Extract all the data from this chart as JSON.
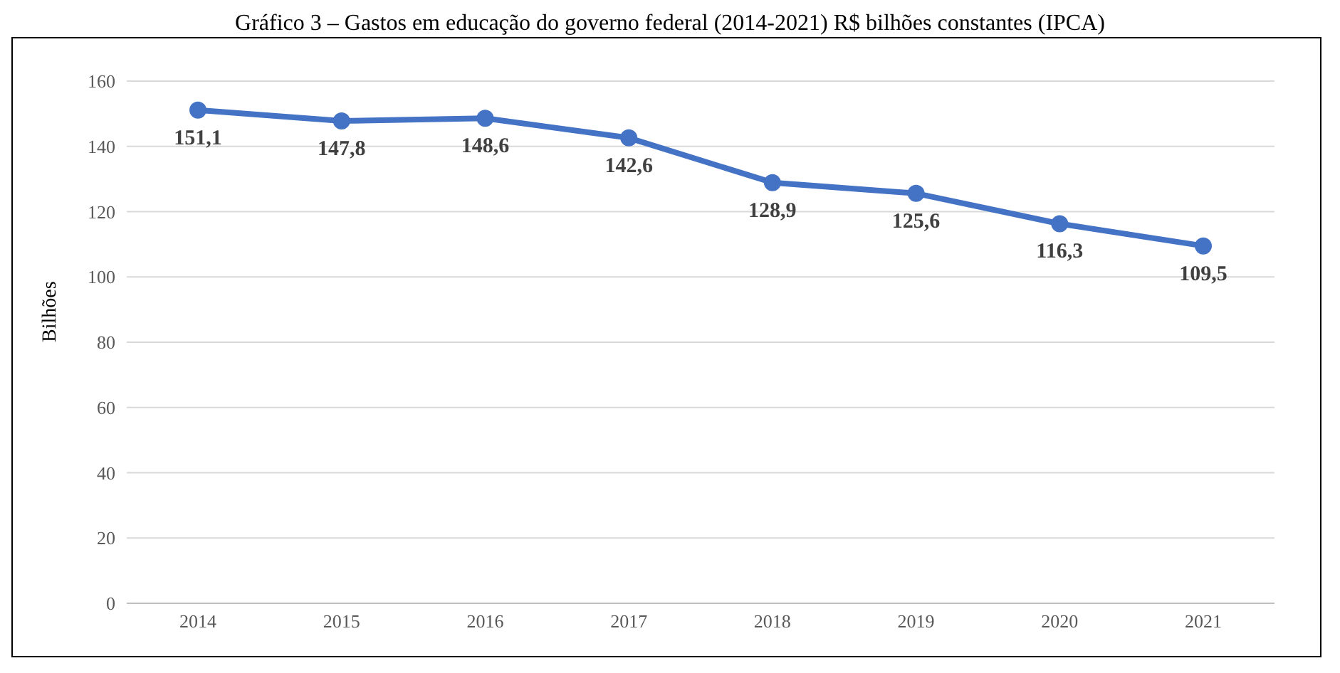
{
  "chart_data": {
    "type": "line",
    "title": "Gráfico 3 – Gastos em educação do governo federal (2014-2021) R$ bilhões constantes (IPCA)",
    "ylabel": "Bilhões",
    "categories": [
      "2014",
      "2015",
      "2016",
      "2017",
      "2018",
      "2019",
      "2020",
      "2021"
    ],
    "series": [
      {
        "color": "#4472c4",
        "values": [
          151.1,
          147.8,
          148.6,
          142.6,
          128.9,
          125.6,
          116.3,
          109.5
        ]
      }
    ],
    "value_labels": [
      "151,1",
      "147,8",
      "148,6",
      "142,6",
      "128,9",
      "125,6",
      "116,3",
      "109,5"
    ],
    "ylim": [
      0,
      160
    ],
    "yticks": [
      0,
      20,
      40,
      60,
      80,
      100,
      120,
      140,
      160
    ],
    "grid": "y",
    "marker": "circle",
    "line_style": "solid"
  }
}
